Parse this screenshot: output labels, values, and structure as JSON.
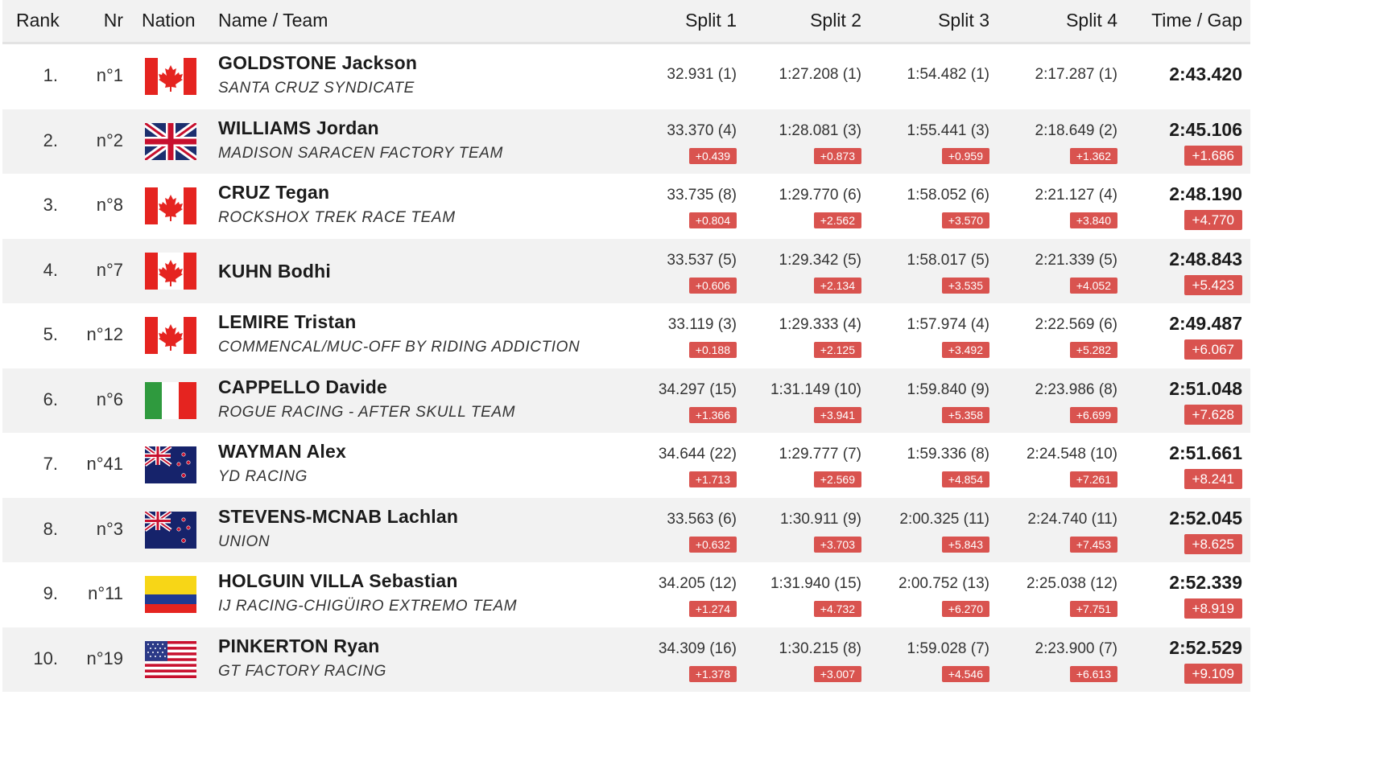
{
  "header": {
    "rank": "Rank",
    "nr": "Nr",
    "nation": "Nation",
    "name_team": "Name / Team",
    "split1": "Split 1",
    "split2": "Split 2",
    "split3": "Split 3",
    "split4": "Split 4",
    "time_gap": "Time / Gap"
  },
  "rows": [
    {
      "rank": "1.",
      "nr": "n°1",
      "flag": "canada-flag-icon",
      "name": "GOLDSTONE Jackson",
      "team": "SANTA CRUZ SYNDICATE",
      "s1": "32.931 (1)",
      "s1g": "",
      "s2": "1:27.208 (1)",
      "s2g": "",
      "s3": "1:54.482 (1)",
      "s3g": "",
      "s4": "2:17.287 (1)",
      "s4g": "",
      "time": "2:43.420",
      "gap": ""
    },
    {
      "rank": "2.",
      "nr": "n°2",
      "flag": "great-britain-flag-icon",
      "name": "WILLIAMS Jordan",
      "team": "MADISON SARACEN FACTORY TEAM",
      "s1": "33.370 (4)",
      "s1g": "+0.439",
      "s2": "1:28.081 (3)",
      "s2g": "+0.873",
      "s3": "1:55.441 (3)",
      "s3g": "+0.959",
      "s4": "2:18.649 (2)",
      "s4g": "+1.362",
      "time": "2:45.106",
      "gap": "+1.686"
    },
    {
      "rank": "3.",
      "nr": "n°8",
      "flag": "canada-flag-icon",
      "name": "CRUZ Tegan",
      "team": "ROCKSHOX TREK RACE TEAM",
      "s1": "33.735 (8)",
      "s1g": "+0.804",
      "s2": "1:29.770 (6)",
      "s2g": "+2.562",
      "s3": "1:58.052 (6)",
      "s3g": "+3.570",
      "s4": "2:21.127 (4)",
      "s4g": "+3.840",
      "time": "2:48.190",
      "gap": "+4.770"
    },
    {
      "rank": "4.",
      "nr": "n°7",
      "flag": "canada-flag-icon",
      "name": "KUHN Bodhi",
      "team": "",
      "s1": "33.537 (5)",
      "s1g": "+0.606",
      "s2": "1:29.342 (5)",
      "s2g": "+2.134",
      "s3": "1:58.017 (5)",
      "s3g": "+3.535",
      "s4": "2:21.339 (5)",
      "s4g": "+4.052",
      "time": "2:48.843",
      "gap": "+5.423"
    },
    {
      "rank": "5.",
      "nr": "n°12",
      "flag": "canada-flag-icon",
      "name": "LEMIRE Tristan",
      "team": "COMMENCAL/MUC-OFF BY RIDING ADDICTION",
      "s1": "33.119 (3)",
      "s1g": "+0.188",
      "s2": "1:29.333 (4)",
      "s2g": "+2.125",
      "s3": "1:57.974 (4)",
      "s3g": "+3.492",
      "s4": "2:22.569 (6)",
      "s4g": "+5.282",
      "time": "2:49.487",
      "gap": "+6.067"
    },
    {
      "rank": "6.",
      "nr": "n°6",
      "flag": "italy-flag-icon",
      "name": "CAPPELLO Davide",
      "team": "ROGUE RACING - AFTER SKULL TEAM",
      "s1": "34.297 (15)",
      "s1g": "+1.366",
      "s2": "1:31.149 (10)",
      "s2g": "+3.941",
      "s3": "1:59.840 (9)",
      "s3g": "+5.358",
      "s4": "2:23.986 (8)",
      "s4g": "+6.699",
      "time": "2:51.048",
      "gap": "+7.628"
    },
    {
      "rank": "7.",
      "nr": "n°41",
      "flag": "new-zealand-flag-icon",
      "name": "WAYMAN Alex",
      "team": "YD RACING",
      "s1": "34.644 (22)",
      "s1g": "+1.713",
      "s2": "1:29.777 (7)",
      "s2g": "+2.569",
      "s3": "1:59.336 (8)",
      "s3g": "+4.854",
      "s4": "2:24.548 (10)",
      "s4g": "+7.261",
      "time": "2:51.661",
      "gap": "+8.241"
    },
    {
      "rank": "8.",
      "nr": "n°3",
      "flag": "new-zealand-flag-icon",
      "name": "STEVENS-MCNAB Lachlan",
      "team": "UNION",
      "s1": "33.563 (6)",
      "s1g": "+0.632",
      "s2": "1:30.911 (9)",
      "s2g": "+3.703",
      "s3": "2:00.325 (11)",
      "s3g": "+5.843",
      "s4": "2:24.740 (11)",
      "s4g": "+7.453",
      "time": "2:52.045",
      "gap": "+8.625"
    },
    {
      "rank": "9.",
      "nr": "n°11",
      "flag": "colombia-flag-icon",
      "name": "HOLGUIN VILLA Sebastian",
      "team": "IJ RACING-CHIGÜIRO EXTREMO TEAM",
      "s1": "34.205 (12)",
      "s1g": "+1.274",
      "s2": "1:31.940 (15)",
      "s2g": "+4.732",
      "s3": "2:00.752 (13)",
      "s3g": "+6.270",
      "s4": "2:25.038 (12)",
      "s4g": "+7.751",
      "time": "2:52.339",
      "gap": "+8.919"
    },
    {
      "rank": "10.",
      "nr": "n°19",
      "flag": "usa-flag-icon",
      "name": "PINKERTON Ryan",
      "team": "GT FACTORY RACING",
      "s1": "34.309 (16)",
      "s1g": "+1.378",
      "s2": "1:30.215 (8)",
      "s2g": "+3.007",
      "s3": "1:59.028 (7)",
      "s3g": "+4.546",
      "s4": "2:23.900 (7)",
      "s4g": "+6.613",
      "time": "2:52.529",
      "gap": "+9.109"
    }
  ],
  "colors": {
    "gap_badge": "#d9534f",
    "row_alt": "#f2f2f2"
  }
}
